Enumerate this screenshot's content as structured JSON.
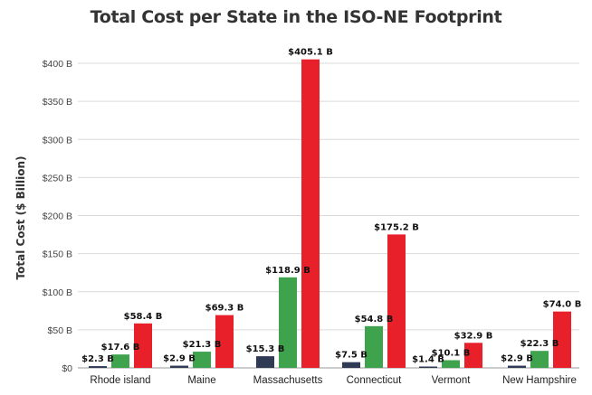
{
  "chart_data": {
    "type": "bar",
    "title": "Total Cost per State in the ISO-NE Footprint",
    "xlabel": "",
    "ylabel": "Total Cost ($ Billion)",
    "ylim": [
      0,
      400
    ],
    "yticks": [
      "$0",
      "$50 B",
      "$100 B",
      "$150 B",
      "$200 B",
      "$250 B",
      "$300 B",
      "$350 B",
      "$400 B"
    ],
    "ytick_values": [
      0,
      50,
      100,
      150,
      200,
      250,
      300,
      350,
      400
    ],
    "grid": true,
    "legend": "none",
    "categories": [
      "Rhode island",
      "Maine",
      "Massachusetts",
      "Connecticut",
      "Vermont",
      "New Hampshire"
    ],
    "series": [
      {
        "values": [
          2.3,
          2.9,
          15.3,
          7.5,
          1.4,
          2.9
        ],
        "labels": [
          "$2.3 B",
          "$2.9 B",
          "$15.3 B",
          "$7.5 B",
          "$1.4 B",
          "$2.9 B"
        ],
        "color": "#2f3a55"
      },
      {
        "values": [
          17.6,
          21.3,
          118.9,
          54.8,
          10.1,
          22.3
        ],
        "labels": [
          "$17.6 B",
          "$21.3 B",
          "$118.9 B",
          "$54.8 B",
          "$10.1 B",
          "$22.3 B"
        ],
        "color": "#3fa34d"
      },
      {
        "values": [
          58.4,
          69.3,
          405.1,
          175.2,
          32.9,
          74.0
        ],
        "labels": [
          "$58.4 B",
          "$69.3 B",
          "$405.1 B",
          "$175.2 B",
          "$32.9 B",
          "$74.0 B"
        ],
        "color": "#e8202a"
      }
    ]
  }
}
